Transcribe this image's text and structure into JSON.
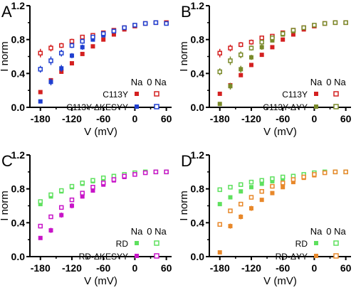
{
  "chart_data": [
    {
      "type": "scatter",
      "panel_label": "A",
      "xlabel": "V (mV)",
      "ylabel": "I norm",
      "xlim": [
        -200,
        70
      ],
      "ylim": [
        0,
        1.2
      ],
      "x_ticks": [
        -180,
        -120,
        -60,
        0,
        60
      ],
      "y_ticks": [
        0.0,
        0.4,
        0.8,
        1.2
      ],
      "legend_head": [
        "Na",
        "0 Na"
      ],
      "series": [
        {
          "label": "C113Y",
          "condition": "Na",
          "color": "#d42020",
          "marker": "filled-square",
          "x": [
            -180,
            -160,
            -140,
            -120,
            -100,
            -80,
            -60,
            -40,
            -20,
            0,
            20,
            40,
            60
          ],
          "y": [
            0.18,
            0.32,
            0.42,
            0.52,
            0.63,
            0.72,
            0.8,
            0.86,
            0.92,
            0.96,
            0.99,
            1.0,
            1.0
          ]
        },
        {
          "label": "C113Y",
          "condition": "0 Na",
          "color": "#d42020",
          "marker": "open-square",
          "x": [
            -180,
            -160,
            -140,
            -120,
            -100,
            -80,
            -60,
            -40,
            -20,
            0,
            20,
            40,
            60
          ],
          "y": [
            0.64,
            0.7,
            0.73,
            0.78,
            0.83,
            0.85,
            0.88,
            0.91,
            0.94,
            0.96,
            0.99,
            1.0,
            1.0
          ],
          "err": [
            0.05,
            0.04,
            0.03,
            0.03,
            0.02,
            0.02,
            0.02,
            0.01,
            0.01,
            0.01,
            0.01,
            0.01,
            0.01
          ]
        },
        {
          "label": "C113Y-ΔKESYY",
          "condition": "Na",
          "color": "#1f3fd0",
          "marker": "filled-square",
          "x": [
            -180,
            -160,
            -140,
            -120,
            -100,
            -80,
            -60,
            -40,
            -20,
            0,
            20,
            40,
            60
          ],
          "y": [
            0.07,
            0.3,
            0.46,
            0.61,
            0.71,
            0.8,
            0.85,
            0.9,
            0.94,
            0.97,
            0.99,
            1.0,
            0.99
          ],
          "err": [
            0.02,
            0.04,
            0.04,
            0.03,
            0.03,
            0.02,
            0.02,
            0.01,
            0.01,
            0.01,
            0.01,
            0.01,
            0.01
          ]
        },
        {
          "label": "C113Y-ΔKESYY",
          "condition": "0 Na",
          "color": "#1f3fd0",
          "marker": "open-square",
          "x": [
            -180,
            -160,
            -140,
            -120,
            -100,
            -80,
            -60,
            -40,
            -20,
            0,
            20,
            40,
            60
          ],
          "y": [
            0.45,
            0.55,
            0.64,
            0.73,
            0.78,
            0.83,
            0.87,
            0.9,
            0.94,
            0.97,
            0.99,
            1.0,
            0.99
          ],
          "err": [
            0.04,
            0.05,
            0.04,
            0.03,
            0.03,
            0.02,
            0.02,
            0.01,
            0.01,
            0.01,
            0.01,
            0.01,
            0.01
          ]
        }
      ]
    },
    {
      "type": "scatter",
      "panel_label": "B",
      "xlabel": "V (mV)",
      "ylabel": "I norm",
      "xlim": [
        -200,
        70
      ],
      "ylim": [
        0,
        1.2
      ],
      "x_ticks": [
        -180,
        -120,
        -60,
        0,
        60
      ],
      "y_ticks": [
        0.0,
        0.4,
        0.8,
        1.2
      ],
      "legend_head": [
        "Na",
        "0 Na"
      ],
      "series": [
        {
          "label": "C113Y",
          "condition": "Na",
          "color": "#d42020",
          "marker": "filled-square",
          "x": [
            -180,
            -160,
            -140,
            -120,
            -100,
            -80,
            -60,
            -40,
            -20,
            0,
            20,
            40,
            60
          ],
          "y": [
            0.16,
            0.26,
            0.38,
            0.5,
            0.62,
            0.71,
            0.8,
            0.86,
            0.92,
            0.96,
            0.99,
            1.0,
            1.0
          ]
        },
        {
          "label": "C113Y",
          "condition": "0 Na",
          "color": "#d42020",
          "marker": "open-square",
          "x": [
            -180,
            -160,
            -140,
            -120,
            -100,
            -80,
            -60,
            -40,
            -20,
            0,
            20,
            40,
            60
          ],
          "y": [
            0.64,
            0.7,
            0.74,
            0.77,
            0.82,
            0.84,
            0.88,
            0.91,
            0.94,
            0.96,
            0.99,
            1.0,
            1.0
          ],
          "err": [
            0.05,
            0.04,
            0.03,
            0.03,
            0.02,
            0.02,
            0.02,
            0.01,
            0.01,
            0.01,
            0.01,
            0.01,
            0.01
          ]
        },
        {
          "label": "C113Y-ΔYY",
          "condition": "Na",
          "color": "#7a8a2a",
          "marker": "filled-square",
          "x": [
            -180,
            -160,
            -140,
            -120,
            -100,
            -80,
            -60,
            -40,
            -20,
            0,
            20,
            40,
            60
          ],
          "y": [
            0.04,
            0.25,
            0.45,
            0.59,
            0.71,
            0.79,
            0.86,
            0.9,
            0.94,
            0.97,
            0.99,
            1.0,
            1.0
          ],
          "err": [
            0.01,
            0.04,
            0.04,
            0.03,
            0.03,
            0.02,
            0.02,
            0.01,
            0.01,
            0.01,
            0.01,
            0.01,
            0.01
          ]
        },
        {
          "label": "C113Y-ΔYY",
          "condition": "0 Na",
          "color": "#7a8a2a",
          "marker": "open-square",
          "x": [
            -180,
            -160,
            -140,
            -120,
            -100,
            -80,
            -60,
            -40,
            -20,
            0,
            20,
            40,
            60
          ],
          "y": [
            0.42,
            0.55,
            0.62,
            0.7,
            0.77,
            0.82,
            0.87,
            0.91,
            0.94,
            0.97,
            0.99,
            1.0,
            1.0
          ],
          "err": [
            0.04,
            0.05,
            0.04,
            0.03,
            0.03,
            0.02,
            0.02,
            0.01,
            0.01,
            0.01,
            0.01,
            0.01,
            0.01
          ]
        }
      ]
    },
    {
      "type": "scatter",
      "panel_label": "C",
      "xlabel": "V (mV)",
      "ylabel": "I norm",
      "xlim": [
        -200,
        70
      ],
      "ylim": [
        0,
        1.2
      ],
      "x_ticks": [
        -180,
        -120,
        -60,
        0,
        60
      ],
      "y_ticks": [
        0.0,
        0.4,
        0.8,
        1.2
      ],
      "legend_head": [
        "Na",
        "0 Na"
      ],
      "series": [
        {
          "label": "RD",
          "condition": "Na",
          "color": "#5ee05e",
          "marker": "filled-square",
          "x": [
            -180,
            -160,
            -140,
            -120,
            -100,
            -80,
            -60,
            -40,
            -20,
            0,
            20,
            40,
            60
          ],
          "y": [
            0.62,
            0.71,
            0.77,
            0.82,
            0.86,
            0.89,
            0.92,
            0.95,
            0.97,
            0.99,
            1.0,
            1.0,
            1.0
          ]
        },
        {
          "label": "RD",
          "condition": "0 Na",
          "color": "#5ee05e",
          "marker": "open-square",
          "x": [
            -180,
            -160,
            -140,
            -120,
            -100,
            -80,
            -60,
            -40,
            -20,
            0,
            20,
            40,
            60
          ],
          "y": [
            0.65,
            0.73,
            0.78,
            0.83,
            0.87,
            0.9,
            0.93,
            0.95,
            0.97,
            0.99,
            1.0,
            1.0,
            1.0
          ]
        },
        {
          "label": "RD-ΔKESYY",
          "condition": "Na",
          "color": "#c814c8",
          "marker": "filled-square",
          "x": [
            -180,
            -160,
            -140,
            -120,
            -100,
            -80,
            -60,
            -40,
            -20,
            0,
            20,
            40,
            60
          ],
          "y": [
            0.22,
            0.31,
            0.49,
            0.6,
            0.71,
            0.78,
            0.85,
            0.9,
            0.94,
            0.97,
            0.99,
            1.0,
            1.0
          ],
          "err": [
            0.02,
            0.03,
            0.03,
            0.03,
            0.02,
            0.02,
            0.02,
            0.01,
            0.01,
            0.01,
            0.01,
            0.01,
            0.01
          ]
        },
        {
          "label": "RD-ΔKESYY",
          "condition": "0 Na",
          "color": "#c814c8",
          "marker": "open-square",
          "x": [
            -180,
            -160,
            -140,
            -120,
            -100,
            -80,
            -60,
            -40,
            -20,
            0,
            20,
            40,
            60
          ],
          "y": [
            0.36,
            0.47,
            0.58,
            0.67,
            0.75,
            0.82,
            0.87,
            0.91,
            0.95,
            0.97,
            0.99,
            1.0,
            1.0
          ]
        }
      ]
    },
    {
      "type": "scatter",
      "panel_label": "D",
      "xlabel": "V (mV)",
      "ylabel": "I norm",
      "xlim": [
        -200,
        70
      ],
      "ylim": [
        0,
        1.2
      ],
      "x_ticks": [
        -180,
        -120,
        -60,
        0,
        60
      ],
      "y_ticks": [
        0.0,
        0.4,
        0.8,
        1.2
      ],
      "legend_head": [
        "Na",
        "0 Na"
      ],
      "series": [
        {
          "label": "RD",
          "condition": "Na",
          "color": "#5ee05e",
          "marker": "filled-square",
          "x": [
            -180,
            -160,
            -140,
            -120,
            -100,
            -80,
            -60,
            -40,
            -20,
            0,
            20,
            40,
            60
          ],
          "y": [
            0.62,
            0.7,
            0.77,
            0.82,
            0.86,
            0.89,
            0.92,
            0.95,
            0.97,
            0.99,
            1.0,
            1.0,
            1.0
          ]
        },
        {
          "label": "RD",
          "condition": "0 Na",
          "color": "#5ee05e",
          "marker": "open-square",
          "x": [
            -180,
            -160,
            -140,
            -120,
            -100,
            -80,
            -60,
            -40,
            -20,
            0,
            20,
            40,
            60
          ],
          "y": [
            0.79,
            0.82,
            0.85,
            0.88,
            0.9,
            0.92,
            0.94,
            0.95,
            0.97,
            0.99,
            1.0,
            1.0,
            1.0
          ]
        },
        {
          "label": "RD-ΔYY",
          "condition": "Na",
          "color": "#e8882a",
          "marker": "filled-square",
          "x": [
            -180,
            -160,
            -140,
            -120,
            -100,
            -80,
            -60,
            -40,
            -20,
            0,
            20,
            40,
            60
          ],
          "y": [
            0.05,
            0.36,
            0.47,
            0.57,
            0.67,
            0.75,
            0.82,
            0.88,
            0.93,
            0.96,
            0.99,
            1.0,
            1.0
          ],
          "err": [
            0.01,
            0.03,
            0.03,
            0.03,
            0.02,
            0.02,
            0.02,
            0.01,
            0.01,
            0.01,
            0.01,
            0.01,
            0.01
          ]
        },
        {
          "label": "RD-ΔYY",
          "condition": "0 Na",
          "color": "#e8882a",
          "marker": "open-square",
          "x": [
            -180,
            -160,
            -140,
            -120,
            -100,
            -80,
            -60,
            -40,
            -20,
            0,
            20,
            40,
            60
          ],
          "y": [
            0.38,
            0.54,
            0.62,
            0.7,
            0.77,
            0.83,
            0.87,
            0.91,
            0.94,
            0.97,
            0.99,
            1.0,
            1.0
          ]
        }
      ]
    }
  ]
}
